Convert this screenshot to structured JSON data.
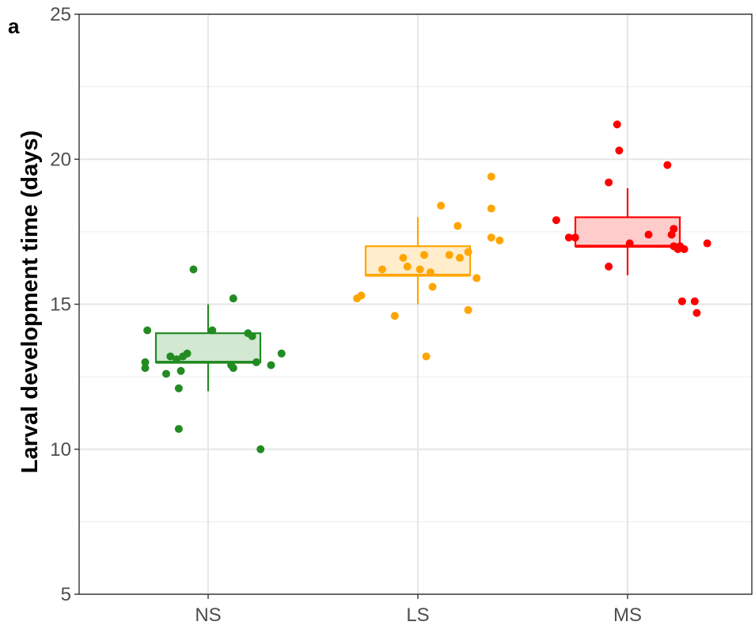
{
  "panel_label": "a",
  "chart_data": {
    "type": "box-jitter",
    "title": "",
    "xlabel": "",
    "ylabel": "Larval development time (days)",
    "ylim": [
      5,
      25
    ],
    "y_ticks": [
      5,
      10,
      15,
      20,
      25
    ],
    "y_tick_labels": [
      "5",
      "10",
      "15",
      "20",
      "25"
    ],
    "categories": [
      "NS",
      "LS",
      "MS"
    ],
    "grid": true,
    "legend": "none",
    "groups": [
      {
        "category": "NS",
        "color": "#228B22",
        "fill": "#d2e8d2",
        "box": {
          "min": 12,
          "q1": 13,
          "median": 13,
          "q3": 14,
          "max": 15
        },
        "points": [
          {
            "dx": -0.29,
            "y": 14.1
          },
          {
            "dx": -0.3,
            "y": 13.0
          },
          {
            "dx": -0.3,
            "y": 12.8
          },
          {
            "dx": -0.2,
            "y": 12.6
          },
          {
            "dx": -0.18,
            "y": 13.2
          },
          {
            "dx": -0.15,
            "y": 13.1
          },
          {
            "dx": -0.13,
            "y": 12.7
          },
          {
            "dx": -0.12,
            "y": 13.2
          },
          {
            "dx": -0.1,
            "y": 13.3
          },
          {
            "dx": -0.14,
            "y": 12.1
          },
          {
            "dx": -0.14,
            "y": 10.7
          },
          {
            "dx": -0.07,
            "y": 16.2
          },
          {
            "dx": 0.02,
            "y": 14.1
          },
          {
            "dx": 0.11,
            "y": 12.9
          },
          {
            "dx": 0.12,
            "y": 12.8
          },
          {
            "dx": 0.12,
            "y": 15.2
          },
          {
            "dx": 0.19,
            "y": 14.0
          },
          {
            "dx": 0.21,
            "y": 13.9
          },
          {
            "dx": 0.23,
            "y": 13.0
          },
          {
            "dx": 0.3,
            "y": 12.9
          },
          {
            "dx": 0.35,
            "y": 13.3
          },
          {
            "dx": 0.25,
            "y": 10.0
          }
        ]
      },
      {
        "category": "LS",
        "color": "#FFA500",
        "fill": "#ffedcc",
        "box": {
          "min": 15,
          "q1": 16,
          "median": 16,
          "q3": 17,
          "max": 18
        },
        "points": [
          {
            "dx": -0.29,
            "y": 15.2
          },
          {
            "dx": -0.27,
            "y": 15.3
          },
          {
            "dx": -0.17,
            "y": 16.2
          },
          {
            "dx": -0.11,
            "y": 14.6
          },
          {
            "dx": -0.07,
            "y": 16.6
          },
          {
            "dx": -0.05,
            "y": 16.3
          },
          {
            "dx": 0.01,
            "y": 16.2
          },
          {
            "dx": 0.03,
            "y": 16.7
          },
          {
            "dx": 0.04,
            "y": 13.2
          },
          {
            "dx": 0.06,
            "y": 16.1
          },
          {
            "dx": 0.07,
            "y": 15.6
          },
          {
            "dx": 0.11,
            "y": 18.4
          },
          {
            "dx": 0.15,
            "y": 16.7
          },
          {
            "dx": 0.2,
            "y": 16.6
          },
          {
            "dx": 0.19,
            "y": 17.7
          },
          {
            "dx": 0.24,
            "y": 16.8
          },
          {
            "dx": 0.24,
            "y": 14.8
          },
          {
            "dx": 0.28,
            "y": 15.9
          },
          {
            "dx": 0.35,
            "y": 18.3
          },
          {
            "dx": 0.35,
            "y": 17.3
          },
          {
            "dx": 0.39,
            "y": 17.2
          },
          {
            "dx": 0.35,
            "y": 19.4
          }
        ]
      },
      {
        "category": "MS",
        "color": "#FF0000",
        "fill": "#ffcccc",
        "box": {
          "min": 16,
          "q1": 17,
          "median": 17,
          "q3": 18,
          "max": 19
        },
        "points": [
          {
            "dx": -0.34,
            "y": 17.9
          },
          {
            "dx": -0.28,
            "y": 17.3
          },
          {
            "dx": -0.25,
            "y": 17.3
          },
          {
            "dx": -0.09,
            "y": 16.3
          },
          {
            "dx": -0.09,
            "y": 19.2
          },
          {
            "dx": -0.05,
            "y": 21.2
          },
          {
            "dx": -0.04,
            "y": 20.3
          },
          {
            "dx": 0.01,
            "y": 17.1
          },
          {
            "dx": 0.1,
            "y": 17.4
          },
          {
            "dx": 0.19,
            "y": 19.8
          },
          {
            "dx": 0.21,
            "y": 17.4
          },
          {
            "dx": 0.22,
            "y": 17.0
          },
          {
            "dx": 0.22,
            "y": 17.6
          },
          {
            "dx": 0.24,
            "y": 16.9
          },
          {
            "dx": 0.25,
            "y": 17.0
          },
          {
            "dx": 0.27,
            "y": 16.9
          },
          {
            "dx": 0.26,
            "y": 15.1
          },
          {
            "dx": 0.32,
            "y": 15.1
          },
          {
            "dx": 0.33,
            "y": 14.7
          },
          {
            "dx": 0.38,
            "y": 17.1
          }
        ]
      }
    ]
  }
}
